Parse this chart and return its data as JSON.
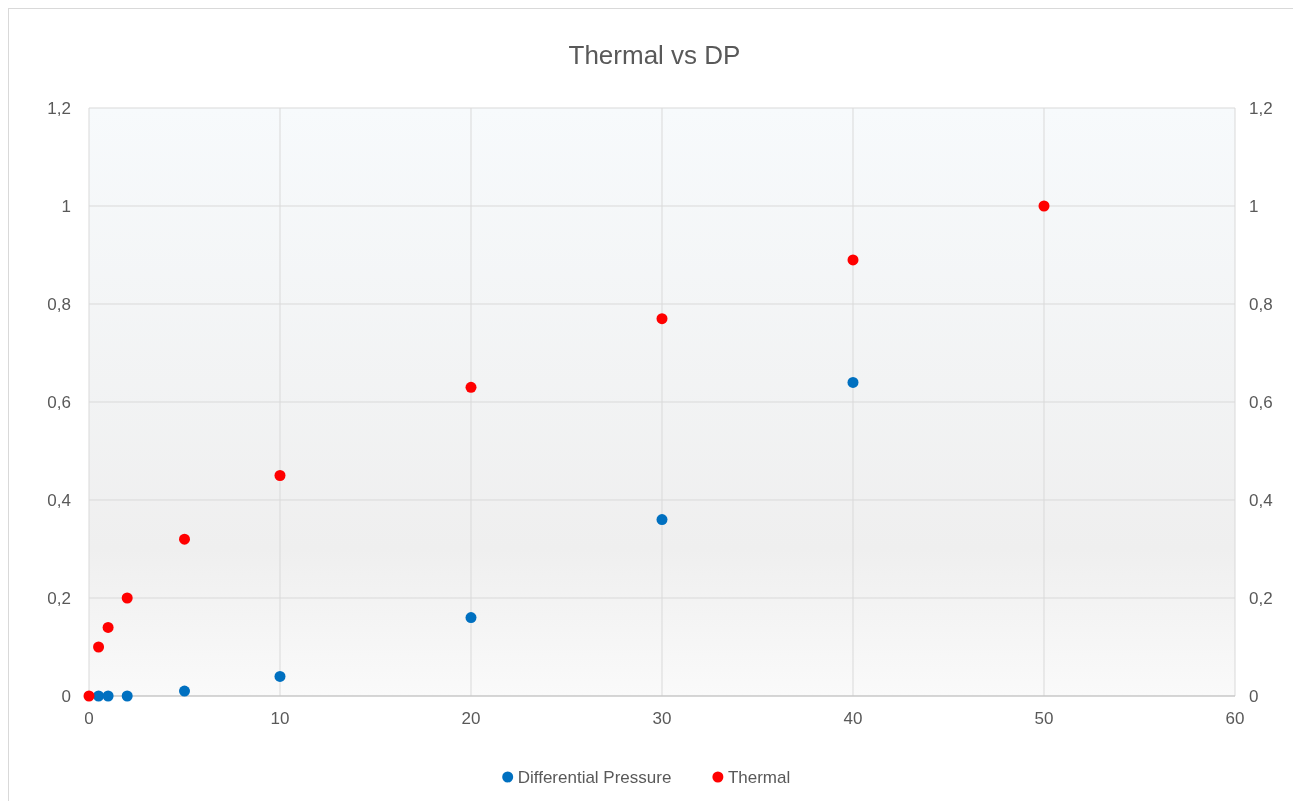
{
  "chart_data": {
    "type": "scatter",
    "title": "Thermal vs DP",
    "series": [
      {
        "name": "Differential Pressure",
        "color": "#0070c0",
        "x": [
          0.5,
          1,
          2,
          5,
          10,
          20,
          30,
          40
        ],
        "values": [
          0,
          0,
          0,
          0.01,
          0.04,
          0.16,
          0.36,
          0.64
        ]
      },
      {
        "name": "Thermal",
        "color": "#ff0000",
        "x": [
          0,
          0.5,
          1,
          2,
          5,
          10,
          20,
          30,
          40,
          50
        ],
        "values": [
          0,
          0.1,
          0.14,
          0.2,
          0.32,
          0.45,
          0.63,
          0.77,
          0.89,
          1
        ]
      }
    ],
    "xlim": [
      0,
      60
    ],
    "xticks": [
      0,
      10,
      20,
      30,
      40,
      50,
      60
    ],
    "ylim": [
      0,
      1.2
    ],
    "yticks": [
      0,
      {
        "value": 0.2,
        "label": "0,2"
      },
      {
        "value": 0.4,
        "label": "0,4"
      },
      {
        "value": 0.6,
        "label": "0,6"
      },
      {
        "value": 0.8,
        "label": "0,8"
      },
      1,
      {
        "value": 1.2,
        "label": "1,2"
      }
    ],
    "y2lim": [
      0,
      1.2
    ],
    "y2ticks": [
      0,
      {
        "value": 0.2,
        "label": "0,2"
      },
      {
        "value": 0.4,
        "label": "0,4"
      },
      {
        "value": 0.6,
        "label": "0,6"
      },
      {
        "value": 0.8,
        "label": "0,8"
      },
      1,
      {
        "value": 1.2,
        "label": "1,2"
      }
    ],
    "grid": true,
    "legend": "bottom",
    "marker": "circle"
  }
}
